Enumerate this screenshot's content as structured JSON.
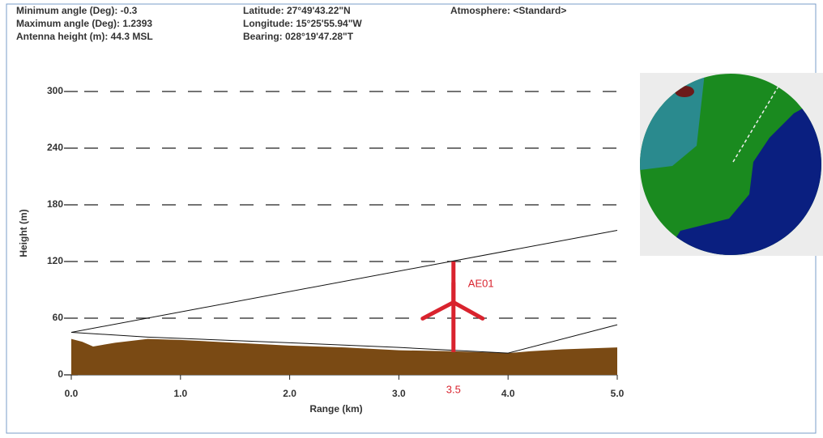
{
  "chart_data": {
    "type": "profile",
    "info": [
      "Minimum angle (Deg): -0.3",
      "Maximum angle (Deg): 1.2393",
      "Antenna height (m): 44.3 MSL",
      "Latitude: 27°49'43.22\"N",
      "Longitude: 15°25'55.94\"W",
      "Bearing: 028°19'47.28\"T",
      "Atmosphere: <Standard>"
    ],
    "x_label": "Range (km)",
    "y_label": "Height (m)",
    "xlim": [
      0,
      5
    ],
    "ylim": [
      0,
      300
    ],
    "xticks": [
      {
        "value": 0,
        "label": "0.0"
      },
      {
        "value": 1,
        "label": "1.0"
      },
      {
        "value": 2,
        "label": "2.0"
      },
      {
        "value": 3,
        "label": "3.0"
      },
      {
        "value": 4,
        "label": "4.0"
      },
      {
        "value": 5,
        "label": "5.0"
      }
    ],
    "yticks": [
      0,
      60,
      120,
      180,
      240,
      300
    ],
    "grid": true,
    "terrain": {
      "color": "#7a4a14",
      "x": [
        0,
        0.1,
        0.2,
        0.4,
        0.7,
        1.0,
        1.5,
        2.0,
        2.5,
        3.0,
        3.5,
        4.0,
        4.2,
        4.5,
        5.0
      ],
      "values": [
        38,
        35,
        30,
        34,
        38,
        37,
        34,
        31,
        29,
        26,
        25,
        23,
        25,
        27,
        29
      ]
    },
    "beam_upper": {
      "color": "#111111",
      "x": [
        0,
        5
      ],
      "values": [
        45,
        153
      ]
    },
    "beam_lower": {
      "color": "#111111",
      "x": [
        0,
        0.7,
        2.0,
        3.0,
        4.0,
        5.0
      ],
      "values": [
        45,
        40,
        34,
        29,
        23,
        53
      ]
    },
    "turbine": {
      "name": "AE01",
      "x": 3.5,
      "height": 120,
      "color": "#d9232e"
    }
  }
}
